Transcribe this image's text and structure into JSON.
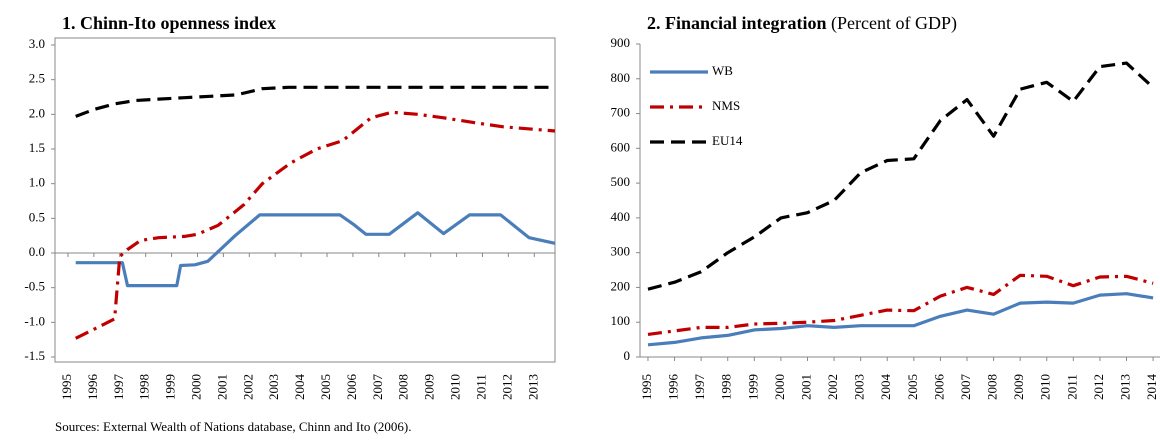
{
  "chart_data": [
    {
      "type": "line",
      "title": "1. Chinn-Ito openness index",
      "xlim": [
        1994.5,
        2013.8
      ],
      "xticks": [
        1995,
        1996,
        1997,
        1998,
        1999,
        2000,
        2001,
        2002,
        2003,
        2004,
        2005,
        2006,
        2007,
        2008,
        2009,
        2010,
        2011,
        2012,
        2013
      ],
      "ylim": [
        -1.5,
        3
      ],
      "yticks": [
        {
          "value": 3,
          "label": "3.0"
        },
        2.5,
        {
          "value": 2,
          "label": "2.0"
        },
        1.5,
        {
          "value": 1,
          "label": "1.0"
        },
        0.5,
        {
          "value": 0,
          "label": "0.0"
        },
        -0.5,
        {
          "value": -1,
          "label": "-1.0"
        },
        -1.5
      ],
      "grid": false,
      "frame": true,
      "series": [
        {
          "name": "WB",
          "color": "#4a7ebb",
          "linestyle": "solid",
          "x": [
            1995.3,
            1997.1,
            1997.3,
            1999.2,
            1999.35,
            1999.9,
            2000.4,
            2001.45,
            2002.4,
            2005.5,
            2006.0,
            2006.5,
            2007.4,
            2008.5,
            2009.5,
            2010.5,
            2011.7,
            2012.8,
            2013.8
          ],
          "values": [
            -0.14,
            -0.14,
            -0.47,
            -0.47,
            -0.18,
            -0.17,
            -0.12,
            0.25,
            0.55,
            0.55,
            0.42,
            0.27,
            0.27,
            0.58,
            0.28,
            0.55,
            0.55,
            0.22,
            0.14
          ]
        },
        {
          "name": "NMS",
          "color": "#c00000",
          "linestyle": "dashdot",
          "x": [
            1995.3,
            1996.0,
            1996.8,
            1997.0,
            1997.3,
            1997.8,
            1998.5,
            1999.5,
            2000.0,
            2000.8,
            2001.8,
            2002.5,
            2003.6,
            2004.6,
            2005.6,
            2006.7,
            2007.5,
            2008.5,
            2009.5,
            2010.7,
            2011.8,
            2013.8
          ],
          "values": [
            -1.23,
            -1.1,
            -0.95,
            -0.05,
            0.05,
            0.18,
            0.22,
            0.24,
            0.27,
            0.4,
            0.7,
            1.0,
            1.3,
            1.5,
            1.62,
            1.95,
            2.03,
            2.0,
            1.95,
            1.88,
            1.82,
            1.76
          ]
        },
        {
          "name": "EU14",
          "color": "#000000",
          "linestyle": "dashed",
          "x": [
            1995.3,
            1996.0,
            1996.8,
            1997.6,
            1998.5,
            1999.5,
            2000.5,
            2001.5,
            2002.5,
            2003.5,
            2013.8
          ],
          "values": [
            1.97,
            2.07,
            2.15,
            2.2,
            2.22,
            2.24,
            2.26,
            2.28,
            2.37,
            2.39,
            2.39
          ]
        }
      ]
    },
    {
      "type": "line",
      "title": "2. Financial integration",
      "subtitle": "(Percent of GDP)",
      "x": [
        1995,
        1996,
        1997,
        1998,
        1999,
        2000,
        2001,
        2002,
        2003,
        2004,
        2005,
        2006,
        2007,
        2008,
        2009,
        2010,
        2011,
        2012,
        2013,
        2014
      ],
      "xlim": [
        1994.7,
        2014.26
      ],
      "xticks": [
        1995,
        1996,
        1997,
        1998,
        1999,
        2000,
        2001,
        2002,
        2003,
        2004,
        2005,
        2006,
        2007,
        2008,
        2009,
        2010,
        2011,
        2012,
        2013,
        2014
      ],
      "ylim": [
        0,
        900
      ],
      "yticks": [
        900,
        800,
        700,
        600,
        500,
        400,
        300,
        200,
        100,
        0
      ],
      "grid": false,
      "frame": false,
      "legend": "upper left",
      "series": [
        {
          "name": "WB",
          "color": "#4a7ebb",
          "linestyle": "solid",
          "values": [
            35,
            42,
            55,
            62,
            78,
            82,
            90,
            85,
            90,
            90,
            90,
            117,
            135,
            123,
            155,
            158,
            155,
            178,
            182,
            170
          ]
        },
        {
          "name": "NMS",
          "color": "#c00000",
          "linestyle": "dashdot",
          "values": [
            65,
            75,
            85,
            85,
            95,
            97,
            100,
            105,
            120,
            135,
            133,
            175,
            200,
            180,
            235,
            232,
            205,
            230,
            232,
            212
          ]
        },
        {
          "name": "EU14",
          "color": "#000000",
          "linestyle": "dashed",
          "values": [
            195,
            215,
            245,
            300,
            345,
            400,
            415,
            450,
            530,
            565,
            570,
            680,
            740,
            635,
            770,
            790,
            735,
            835,
            845,
            775
          ]
        }
      ]
    }
  ],
  "source": "Sources: External  Wealth of Nations  database, Chinn and Ito  (2006)."
}
